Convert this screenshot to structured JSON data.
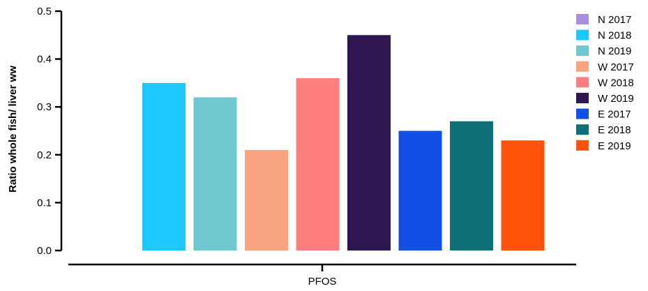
{
  "chart_data": {
    "type": "bar",
    "categories": [
      "PFOS"
    ],
    "ylabel": "Ratio whole fish/ liver ww",
    "ylim": [
      0,
      0.5
    ],
    "yticks": [
      "0.0",
      "0.1",
      "0.2",
      "0.3",
      "0.4",
      "0.5"
    ],
    "grid": false,
    "legend_position": "right",
    "series": [
      {
        "name": "N 2017",
        "color": "#A98FDC",
        "values": [
          0
        ]
      },
      {
        "name": "N 2018",
        "color": "#1FC7FF",
        "values": [
          0.35
        ]
      },
      {
        "name": "N 2019",
        "color": "#6FC8CF",
        "values": [
          0.32
        ]
      },
      {
        "name": "W 2017",
        "color": "#F9A381",
        "values": [
          0.21
        ]
      },
      {
        "name": "W 2018",
        "color": "#FF7F7F",
        "values": [
          0.36
        ]
      },
      {
        "name": "W 2019",
        "color": "#2E1650",
        "values": [
          0.45
        ]
      },
      {
        "name": "E 2017",
        "color": "#114FE6",
        "values": [
          0.25
        ]
      },
      {
        "name": "E 2018",
        "color": "#0E6F78",
        "values": [
          0.27
        ]
      },
      {
        "name": "E 2019",
        "color": "#FF520A",
        "values": [
          0.23
        ]
      }
    ]
  }
}
